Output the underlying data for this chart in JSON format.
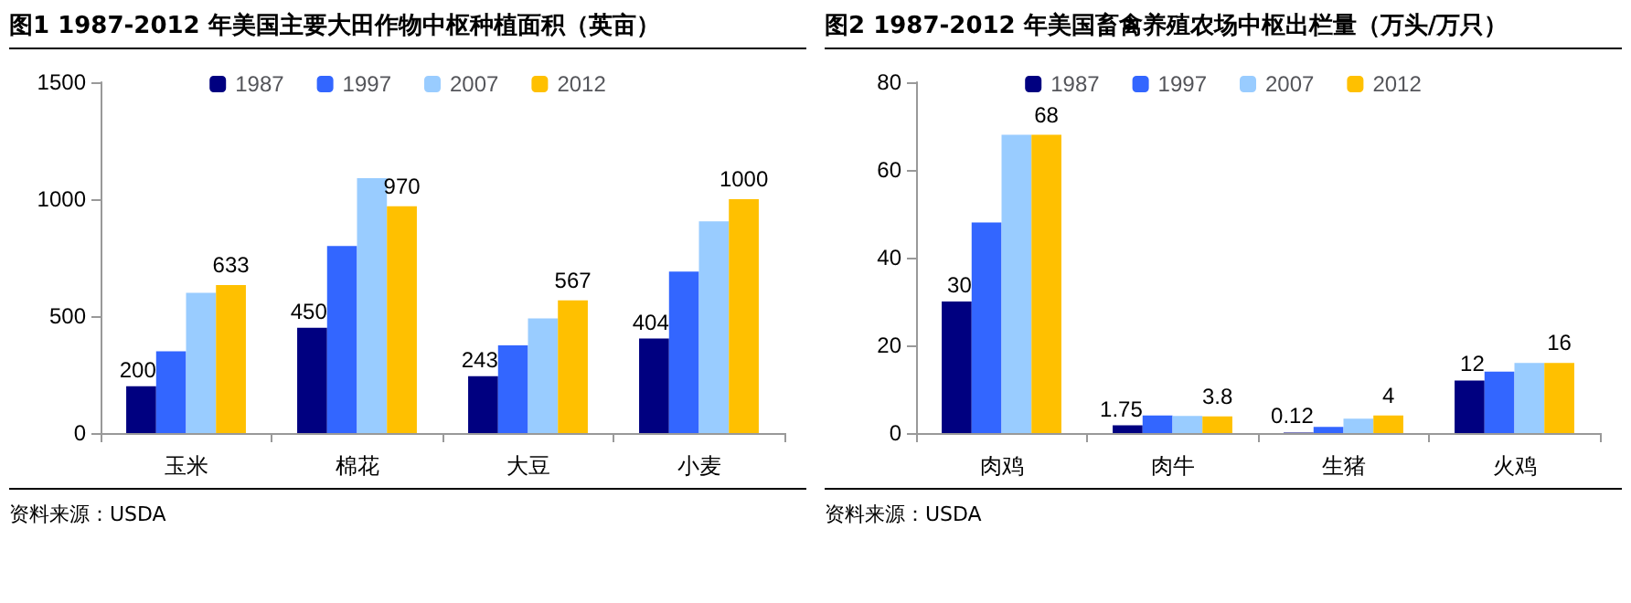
{
  "chart_data": [
    {
      "type": "bar",
      "title": "图1   1987-2012 年美国主要大田作物中枢种植面积（英亩）",
      "categories": [
        "玉米",
        "棉花",
        "大豆",
        "小麦"
      ],
      "ylim": [
        0,
        1500
      ],
      "yticks": [
        0,
        500,
        1000,
        1500
      ],
      "grid": false,
      "legend": "top",
      "annotations": [
        "资料来源：USDA"
      ],
      "series": [
        {
          "name": "1987",
          "color": "#000080",
          "values": [
            200,
            450,
            243,
            404
          ],
          "value_labels": [
            "200",
            "450",
            "243",
            "404"
          ]
        },
        {
          "name": "1997",
          "color": "#3366ff",
          "values": [
            350,
            800,
            375,
            690
          ],
          "value_labels": [
            null,
            null,
            null,
            null
          ]
        },
        {
          "name": "2007",
          "color": "#99ccff",
          "values": [
            600,
            1090,
            490,
            905
          ],
          "value_labels": [
            null,
            null,
            null,
            null
          ]
        },
        {
          "name": "2012",
          "color": "#ffc000",
          "values": [
            633,
            970,
            567,
            1000
          ],
          "value_labels": [
            "633",
            "970",
            "567",
            "1000"
          ]
        }
      ]
    },
    {
      "type": "bar",
      "title": "图2   1987-2012 年美国畜禽养殖农场中枢出栏量（万头/万只）",
      "categories": [
        "肉鸡",
        "肉牛",
        "生猪",
        "火鸡"
      ],
      "ylim": [
        0,
        80
      ],
      "yticks": [
        0,
        20,
        40,
        60,
        80
      ],
      "grid": false,
      "legend": "top",
      "annotations": [
        "资料来源：USDA"
      ],
      "series": [
        {
          "name": "1987",
          "color": "#000080",
          "values": [
            30,
            1.75,
            0.12,
            12
          ],
          "value_labels": [
            "30",
            "1.75",
            "0.12",
            "12"
          ]
        },
        {
          "name": "1997",
          "color": "#3366ff",
          "values": [
            48,
            4,
            1.4,
            14
          ],
          "value_labels": [
            null,
            null,
            null,
            null
          ]
        },
        {
          "name": "2007",
          "color": "#99ccff",
          "values": [
            68,
            3.9,
            3.3,
            16
          ],
          "value_labels": [
            null,
            null,
            null,
            null
          ]
        },
        {
          "name": "2012",
          "color": "#ffc000",
          "values": [
            68,
            3.8,
            4,
            16
          ],
          "value_labels": [
            "68",
            "3.8",
            "4",
            "16"
          ]
        }
      ]
    }
  ]
}
